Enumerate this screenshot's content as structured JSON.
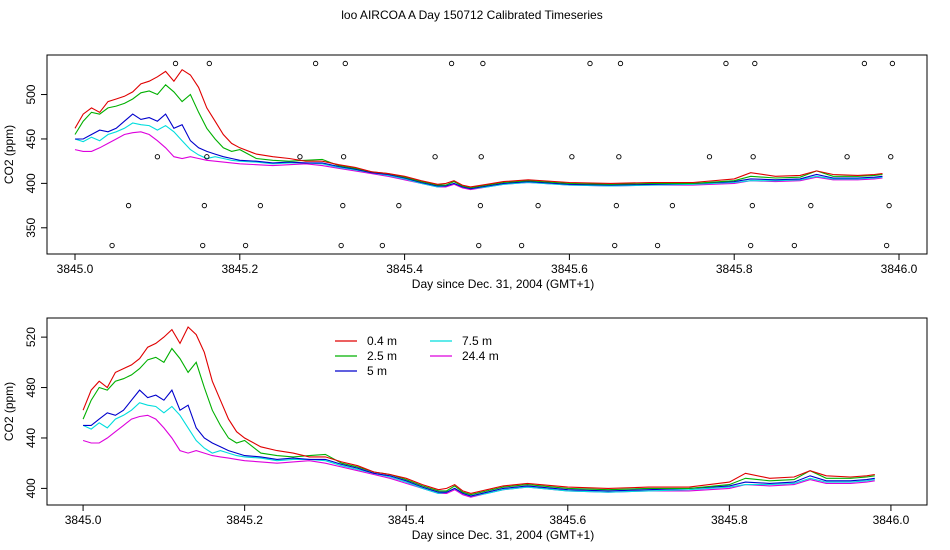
{
  "title": "loo AIRCOA A  Day 150712  Calibrated Timeseries",
  "colors": {
    "0.4 m": "#e00000",
    "2.5 m": "#00b000",
    "5 m": "#0000cc",
    "7.5 m": "#00dddd",
    "24.4 m": "#dd00dd",
    "axis": "#000000"
  },
  "chart_data": [
    {
      "type": "line",
      "title": "",
      "xlabel": "Day since Dec. 31, 2004 (GMT+1)",
      "ylabel": "CO2 (ppm)",
      "xlim": [
        3845.0,
        3846.0
      ],
      "ylim": [
        325,
        540
      ],
      "xticks": [
        3845.0,
        3845.2,
        3845.4,
        3845.6,
        3845.8,
        3846.0
      ],
      "xtick_labels": [
        "3845.0",
        "3845.2",
        "3845.4",
        "3845.6",
        "3845.8",
        "3846.0"
      ],
      "yticks": [
        350,
        400,
        450,
        500
      ],
      "ytick_labels": [
        "350",
        "400",
        "450",
        "500"
      ],
      "grid": false,
      "legend": "none",
      "x": [
        3845.0,
        3845.01,
        3845.02,
        3845.03,
        3845.04,
        3845.05,
        3845.06,
        3845.07,
        3845.08,
        3845.09,
        3845.1,
        3845.11,
        3845.12,
        3845.13,
        3845.14,
        3845.15,
        3845.16,
        3845.17,
        3845.18,
        3845.19,
        3845.2,
        3845.22,
        3845.24,
        3845.26,
        3845.28,
        3845.3,
        3845.32,
        3845.34,
        3845.36,
        3845.38,
        3845.4,
        3845.42,
        3845.44,
        3845.45,
        3845.46,
        3845.47,
        3845.48,
        3845.5,
        3845.52,
        3845.55,
        3845.6,
        3845.65,
        3845.7,
        3845.75,
        3845.8,
        3845.82,
        3845.85,
        3845.88,
        3845.9,
        3845.92,
        3845.95,
        3845.97,
        3845.98
      ],
      "series": [
        {
          "name": "0.4 m",
          "values": [
            462,
            478,
            485,
            480,
            492,
            495,
            498,
            503,
            512,
            515,
            520,
            526,
            515,
            528,
            522,
            508,
            485,
            470,
            455,
            445,
            440,
            433,
            430,
            428,
            425,
            425,
            421,
            418,
            413,
            411,
            408,
            403,
            399,
            400,
            403,
            398,
            396,
            399,
            402,
            404,
            401,
            400,
            401,
            401,
            405,
            412,
            408,
            409,
            414,
            410,
            409,
            410,
            411
          ]
        },
        {
          "name": "2.5 m",
          "values": [
            455,
            470,
            480,
            478,
            485,
            487,
            490,
            495,
            502,
            504,
            500,
            511,
            503,
            492,
            500,
            480,
            462,
            450,
            440,
            436,
            438,
            428,
            426,
            425,
            426,
            427,
            420,
            417,
            413,
            411,
            407,
            402,
            398,
            398,
            402,
            397,
            395,
            398,
            401,
            403,
            400,
            399,
            400,
            400,
            403,
            408,
            406,
            407,
            414,
            408,
            408,
            409,
            410
          ]
        },
        {
          "name": "5 m",
          "values": [
            450,
            450,
            455,
            460,
            458,
            462,
            470,
            478,
            472,
            474,
            470,
            478,
            462,
            466,
            448,
            440,
            436,
            433,
            430,
            428,
            426,
            425,
            423,
            424,
            423,
            423,
            419,
            416,
            412,
            410,
            406,
            401,
            397,
            397,
            400,
            396,
            394,
            397,
            400,
            402,
            399,
            398,
            399,
            400,
            402,
            405,
            404,
            405,
            410,
            406,
            406,
            407,
            408
          ]
        },
        {
          "name": "7.5 m",
          "values": [
            450,
            447,
            452,
            448,
            455,
            458,
            462,
            468,
            466,
            465,
            460,
            465,
            458,
            448,
            438,
            432,
            428,
            430,
            428,
            426,
            425,
            424,
            422,
            423,
            423,
            422,
            418,
            415,
            412,
            409,
            405,
            400,
            396,
            397,
            400,
            396,
            394,
            396,
            399,
            401,
            398,
            397,
            398,
            399,
            401,
            403,
            403,
            404,
            408,
            405,
            405,
            406,
            407
          ]
        },
        {
          "name": "24.4 m",
          "values": [
            438,
            436,
            436,
            440,
            445,
            450,
            455,
            457,
            458,
            455,
            448,
            440,
            430,
            428,
            430,
            428,
            426,
            425,
            424,
            423,
            422,
            421,
            420,
            421,
            422,
            420,
            417,
            414,
            411,
            408,
            404,
            400,
            396,
            396,
            399,
            395,
            393,
            396,
            399,
            401,
            398,
            397,
            398,
            398,
            400,
            403,
            402,
            403,
            407,
            404,
            404,
            405,
            406
          ]
        }
      ],
      "points": {
        "x": [
          3845.045,
          3845.065,
          3845.1,
          3845.122,
          3845.155,
          3845.157,
          3845.16,
          3845.163,
          3845.207,
          3845.225,
          3845.273,
          3845.292,
          3845.323,
          3845.325,
          3845.326,
          3845.328,
          3845.373,
          3845.393,
          3845.437,
          3845.457,
          3845.49,
          3845.492,
          3845.493,
          3845.495,
          3845.542,
          3845.562,
          3845.603,
          3845.625,
          3845.655,
          3845.657,
          3845.66,
          3845.662,
          3845.707,
          3845.725,
          3845.77,
          3845.79,
          3845.82,
          3845.822,
          3845.823,
          3845.825,
          3845.873,
          3845.893,
          3845.937,
          3845.958,
          3845.985,
          3845.988,
          3845.99,
          3845.992
        ],
        "y": [
          330,
          375,
          430,
          535,
          330,
          375,
          430,
          535,
          330,
          375,
          430,
          535,
          330,
          375,
          430,
          535,
          330,
          375,
          430,
          535,
          330,
          375,
          430,
          535,
          330,
          375,
          430,
          535,
          330,
          375,
          430,
          535,
          330,
          375,
          430,
          535,
          330,
          375,
          430,
          535,
          330,
          375,
          430,
          535,
          330,
          375,
          430,
          535
        ]
      }
    },
    {
      "type": "line",
      "title": "",
      "xlabel": "Day since Dec. 31, 2004 (GMT+1)",
      "ylabel": "CO2 (ppm)",
      "xlim": [
        3844.99,
        3846.01
      ],
      "ylim": [
        390,
        532
      ],
      "xticks": [
        3845.0,
        3845.2,
        3845.4,
        3845.6,
        3845.8,
        3846.0
      ],
      "xtick_labels": [
        "3845.0",
        "3845.2",
        "3845.4",
        "3845.6",
        "3845.8",
        "3846.0"
      ],
      "yticks": [
        400,
        440,
        480,
        520
      ],
      "ytick_labels": [
        "400",
        "440",
        "480",
        "520"
      ],
      "grid": false,
      "legend": "top-left",
      "legend_labels": [
        "0.4 m",
        "2.5 m",
        "5 m",
        "7.5 m",
        "24.4 m"
      ],
      "x": [
        3845.0,
        3845.01,
        3845.02,
        3845.03,
        3845.04,
        3845.05,
        3845.06,
        3845.07,
        3845.08,
        3845.09,
        3845.1,
        3845.11,
        3845.12,
        3845.13,
        3845.14,
        3845.15,
        3845.16,
        3845.17,
        3845.18,
        3845.19,
        3845.2,
        3845.22,
        3845.24,
        3845.26,
        3845.28,
        3845.3,
        3845.32,
        3845.34,
        3845.36,
        3845.38,
        3845.4,
        3845.42,
        3845.44,
        3845.45,
        3845.46,
        3845.47,
        3845.48,
        3845.5,
        3845.52,
        3845.55,
        3845.6,
        3845.65,
        3845.7,
        3845.75,
        3845.8,
        3845.82,
        3845.85,
        3845.88,
        3845.9,
        3845.92,
        3845.95,
        3845.97,
        3845.98
      ],
      "series": [
        {
          "name": "0.4 m",
          "values": [
            462,
            478,
            485,
            480,
            492,
            495,
            498,
            503,
            512,
            515,
            520,
            526,
            515,
            528,
            522,
            508,
            485,
            470,
            455,
            445,
            440,
            433,
            430,
            428,
            425,
            425,
            421,
            418,
            413,
            411,
            408,
            403,
            399,
            400,
            403,
            398,
            396,
            399,
            402,
            404,
            401,
            400,
            401,
            401,
            405,
            412,
            408,
            409,
            414,
            410,
            409,
            410,
            411
          ]
        },
        {
          "name": "2.5 m",
          "values": [
            455,
            470,
            480,
            478,
            485,
            487,
            490,
            495,
            502,
            504,
            500,
            511,
            503,
            492,
            500,
            480,
            462,
            450,
            440,
            436,
            438,
            428,
            426,
            425,
            426,
            427,
            420,
            417,
            413,
            411,
            407,
            402,
            398,
            398,
            402,
            397,
            395,
            398,
            401,
            403,
            400,
            399,
            400,
            400,
            403,
            408,
            406,
            407,
            414,
            408,
            408,
            409,
            410
          ]
        },
        {
          "name": "5 m",
          "values": [
            450,
            450,
            455,
            460,
            458,
            462,
            470,
            478,
            472,
            474,
            470,
            478,
            462,
            466,
            448,
            440,
            436,
            433,
            430,
            428,
            426,
            425,
            423,
            424,
            423,
            423,
            419,
            416,
            412,
            410,
            406,
            401,
            397,
            397,
            400,
            396,
            394,
            397,
            400,
            402,
            399,
            398,
            399,
            400,
            402,
            405,
            404,
            405,
            410,
            406,
            406,
            407,
            408
          ]
        },
        {
          "name": "7.5 m",
          "values": [
            450,
            447,
            452,
            448,
            455,
            458,
            462,
            468,
            466,
            465,
            460,
            465,
            458,
            448,
            438,
            432,
            428,
            430,
            428,
            426,
            425,
            424,
            422,
            423,
            423,
            422,
            418,
            415,
            412,
            409,
            405,
            400,
            396,
            397,
            400,
            396,
            394,
            396,
            399,
            401,
            398,
            397,
            398,
            399,
            401,
            403,
            403,
            404,
            408,
            405,
            405,
            406,
            407
          ]
        },
        {
          "name": "24.4 m",
          "values": [
            438,
            436,
            436,
            440,
            445,
            450,
            455,
            457,
            458,
            455,
            448,
            440,
            430,
            428,
            430,
            428,
            426,
            425,
            424,
            423,
            422,
            421,
            420,
            421,
            422,
            420,
            417,
            414,
            411,
            408,
            404,
            400,
            396,
            396,
            399,
            395,
            393,
            396,
            399,
            401,
            398,
            397,
            398,
            398,
            400,
            403,
            402,
            403,
            407,
            404,
            404,
            405,
            406
          ]
        }
      ]
    }
  ]
}
